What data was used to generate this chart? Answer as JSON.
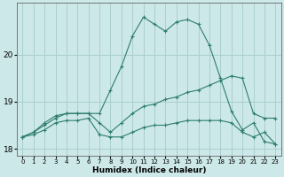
{
  "xlabel": "Humidex (Indice chaleur)",
  "ylabel": "",
  "background_color": "#cce8e8",
  "grid_color": "#aacfcf",
  "line_color": "#2e7d6e",
  "x": [
    0,
    1,
    2,
    3,
    4,
    5,
    6,
    7,
    8,
    9,
    10,
    11,
    12,
    13,
    14,
    15,
    16,
    17,
    18,
    19,
    20,
    21,
    22,
    23
  ],
  "y_top": [
    18.25,
    18.35,
    18.55,
    18.7,
    18.75,
    18.75,
    18.75,
    18.75,
    19.25,
    19.75,
    20.4,
    20.8,
    20.65,
    20.5,
    20.7,
    20.75,
    20.65,
    20.2,
    19.5,
    18.8,
    18.4,
    18.55,
    18.15,
    18.1
  ],
  "y_mid": [
    18.25,
    18.35,
    18.5,
    18.65,
    18.75,
    18.75,
    18.75,
    18.55,
    18.35,
    18.55,
    18.75,
    18.9,
    18.95,
    19.05,
    19.1,
    19.2,
    19.25,
    19.35,
    19.45,
    19.55,
    19.5,
    18.75,
    18.65,
    18.65
  ],
  "y_bot": [
    18.25,
    18.3,
    18.4,
    18.55,
    18.6,
    18.6,
    18.65,
    18.3,
    18.25,
    18.25,
    18.35,
    18.45,
    18.5,
    18.5,
    18.55,
    18.6,
    18.6,
    18.6,
    18.6,
    18.55,
    18.35,
    18.25,
    18.35,
    18.1
  ],
  "ylim": [
    17.85,
    21.1
  ],
  "xlim": [
    -0.5,
    23.5
  ],
  "yticks": [
    18,
    19,
    20
  ],
  "xticks": [
    0,
    1,
    2,
    3,
    4,
    5,
    6,
    7,
    8,
    9,
    10,
    11,
    12,
    13,
    14,
    15,
    16,
    17,
    18,
    19,
    20,
    21,
    22,
    23
  ]
}
